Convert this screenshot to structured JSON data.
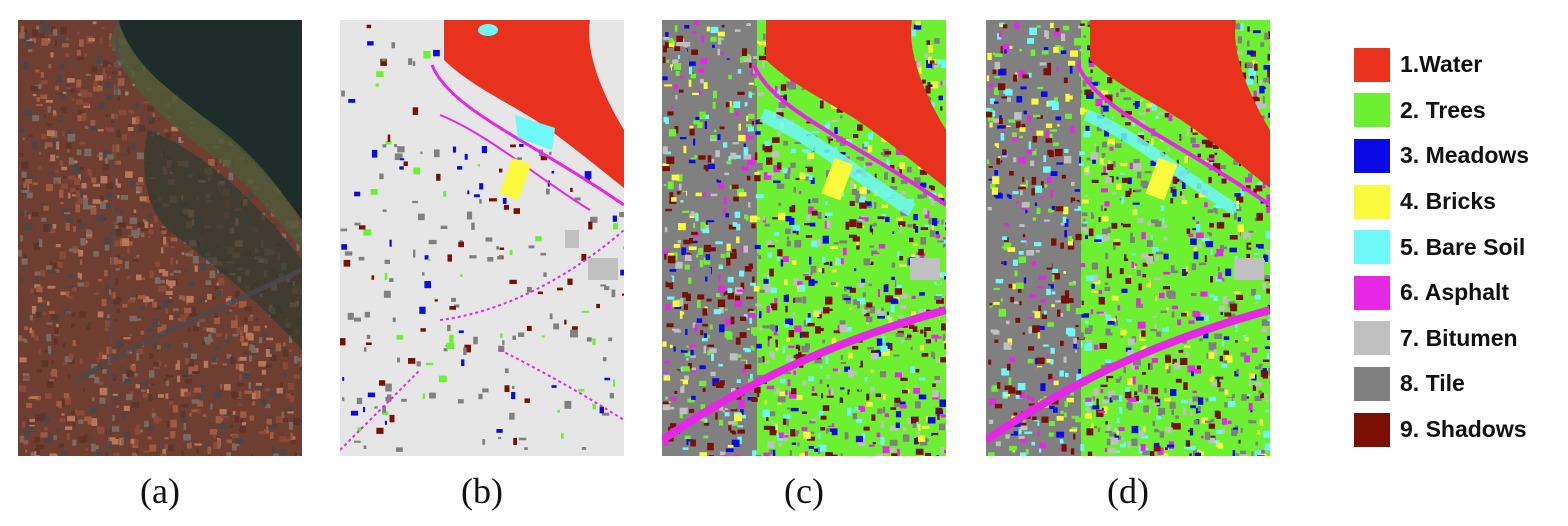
{
  "panels": [
    {
      "caption": "(a)"
    },
    {
      "caption": "(b)"
    },
    {
      "caption": "(c)"
    },
    {
      "caption": "(d)"
    }
  ],
  "legend": [
    {
      "label": "1.Water",
      "color": "#e8321e"
    },
    {
      "label": "2. Trees",
      "color": "#6ef032"
    },
    {
      "label": "3. Meadows",
      "color": "#0a0ae6"
    },
    {
      "label": "4. Bricks",
      "color": "#fafa3c"
    },
    {
      "label": "5. Bare Soil",
      "color": "#6ef8f8"
    },
    {
      "label": "6. Asphalt",
      "color": "#e628e6"
    },
    {
      "label": "7. Bitumen",
      "color": "#c0c0c0"
    },
    {
      "label": "8. Tile",
      "color": "#808080"
    },
    {
      "label": "9. Shadows",
      "color": "#7a1004"
    }
  ],
  "colors": {
    "background_map": "#e6e6e6",
    "aerial_urban": "#8a4a3a",
    "aerial_river": "#1e2c2a"
  }
}
